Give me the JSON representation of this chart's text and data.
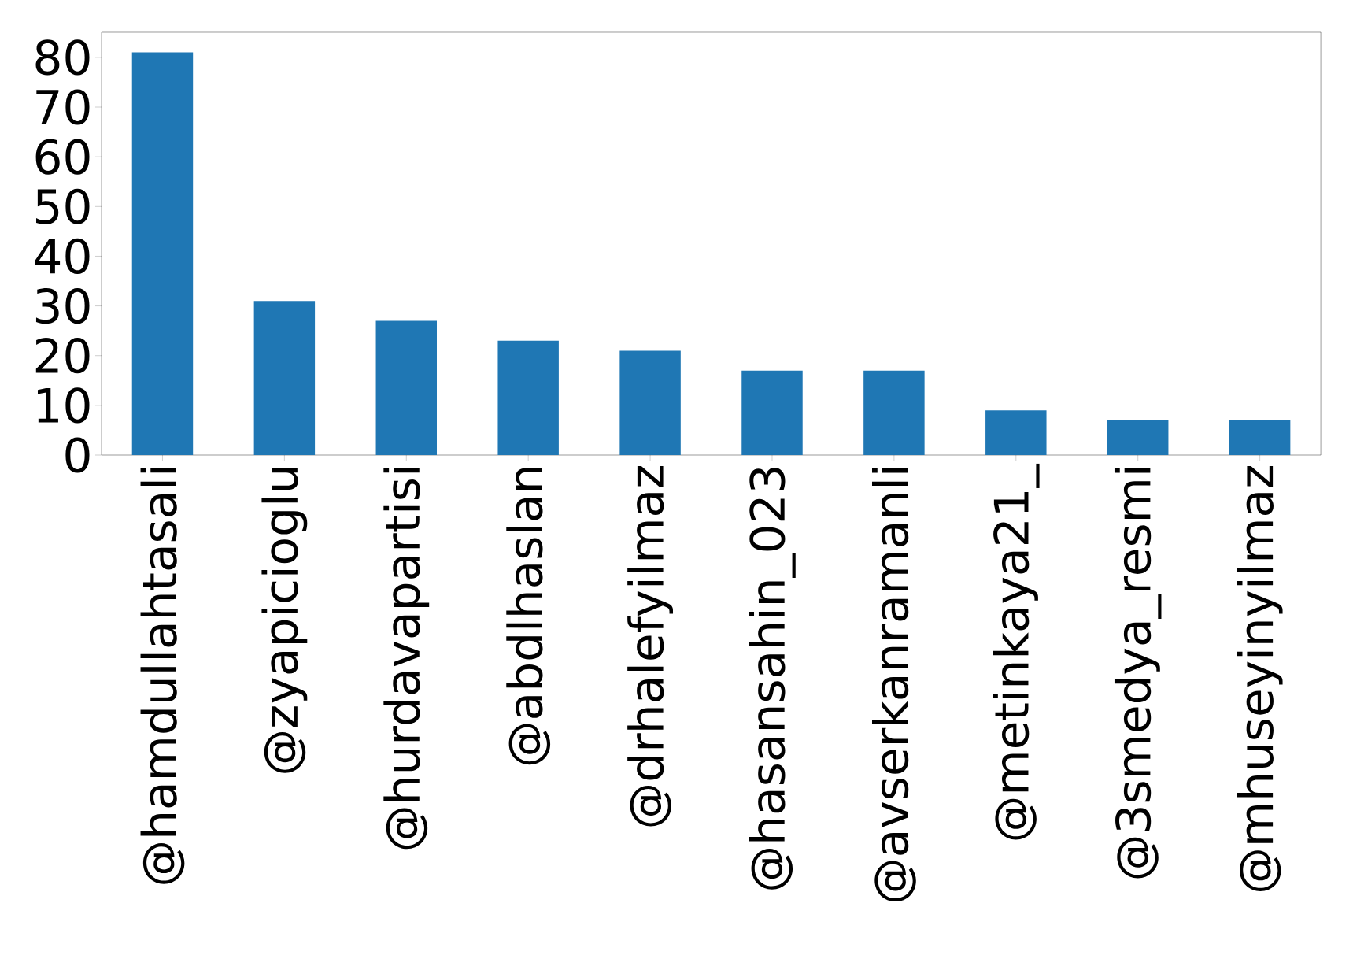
{
  "chart_data": {
    "type": "bar",
    "categories": [
      "@hamdullahtasali",
      "@zyapicioglu",
      "@hurdavapartisi",
      "@abdlhaslan",
      "@drhalefyilmaz",
      "@hasansahin_023",
      "@avserkanramanli",
      "@metinkaya21_",
      "@3smedya_resmi",
      "@mhuseyinyilmaz"
    ],
    "values": [
      81,
      31,
      27,
      23,
      21,
      17,
      17,
      9,
      7,
      7
    ],
    "color": "#1f77b4",
    "ylim": [
      0,
      85.05
    ],
    "yticks": [
      0,
      10,
      20,
      30,
      40,
      50,
      60,
      70,
      80
    ]
  }
}
